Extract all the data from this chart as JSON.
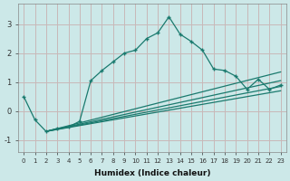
{
  "xlabel": "Humidex (Indice chaleur)",
  "bg_color": "#cce8e8",
  "grid_color": "#c8b8b8",
  "line_color": "#1a7a6e",
  "xlim": [
    -0.5,
    23.5
  ],
  "ylim": [
    -1.4,
    3.7
  ],
  "yticks": [
    -1,
    0,
    1,
    2,
    3
  ],
  "xticks": [
    0,
    1,
    2,
    3,
    4,
    5,
    6,
    7,
    8,
    9,
    10,
    11,
    12,
    13,
    14,
    15,
    16,
    17,
    18,
    19,
    20,
    21,
    22,
    23
  ],
  "line1_x": [
    0,
    1,
    2,
    3,
    4,
    5,
    6,
    7,
    8,
    9,
    10,
    11,
    12,
    13,
    14,
    15,
    16,
    17,
    18,
    19,
    20,
    21,
    22,
    23
  ],
  "line1_y": [
    0.5,
    -0.3,
    -0.7,
    -0.6,
    -0.55,
    -0.35,
    1.05,
    1.4,
    1.7,
    2.0,
    2.1,
    2.5,
    2.7,
    3.25,
    2.65,
    2.4,
    2.1,
    1.45,
    1.4,
    1.2,
    0.75,
    1.1,
    0.75,
    0.9
  ],
  "line2_x": [
    2,
    23
  ],
  "line2_y": [
    -0.7,
    1.35
  ],
  "line3_x": [
    2,
    23
  ],
  "line3_y": [
    -0.7,
    1.05
  ],
  "line4_x": [
    2,
    23
  ],
  "line4_y": [
    -0.7,
    0.85
  ],
  "line5_x": [
    2,
    23
  ],
  "line5_y": [
    -0.7,
    0.7
  ]
}
